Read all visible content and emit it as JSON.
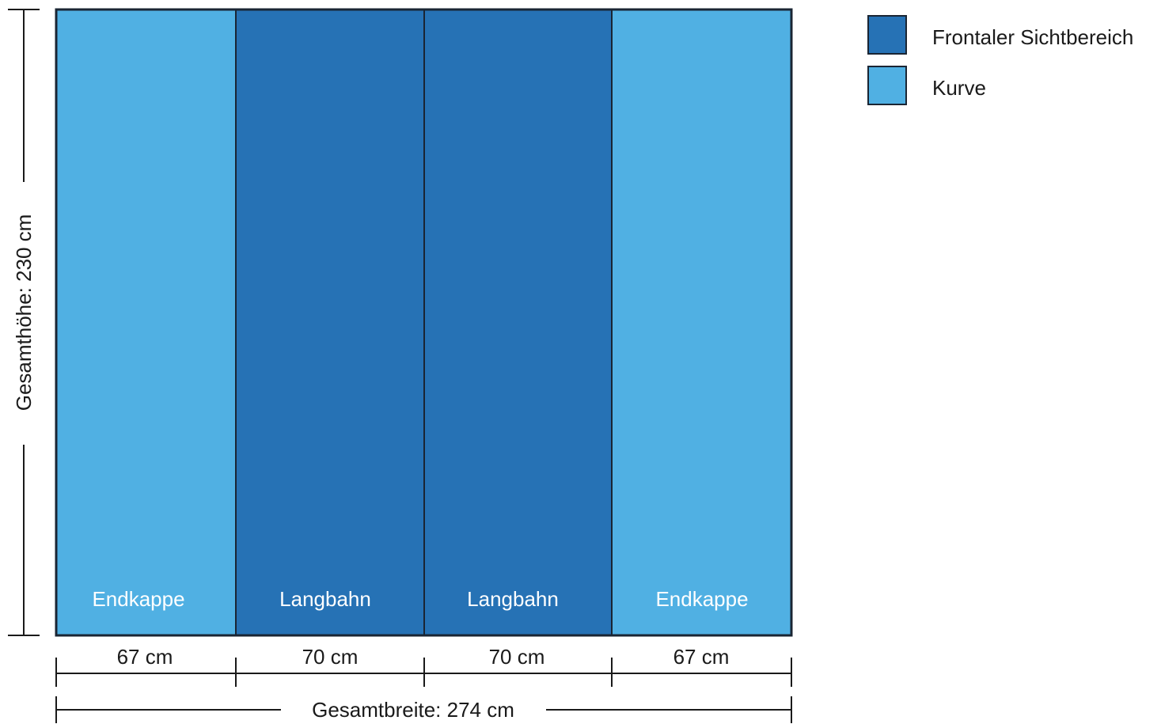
{
  "colors": {
    "frontal": "#2672b5",
    "curve": "#50b0e3",
    "outline": "#1a2533",
    "line": "#1a1a1a"
  },
  "panels": [
    {
      "label": "Endkappe",
      "width_label": "67 cm",
      "kind": "curve"
    },
    {
      "label": "Langbahn",
      "width_label": "70 cm",
      "kind": "frontal"
    },
    {
      "label": "Langbahn",
      "width_label": "70 cm",
      "kind": "frontal"
    },
    {
      "label": "Endkappe",
      "width_label": "67 cm",
      "kind": "curve"
    }
  ],
  "dimensions": {
    "total_width_label": "Gesamtbreite: 274 cm",
    "total_height_label": "Gesamthöhe: 230 cm"
  },
  "legend": [
    {
      "label": "Frontaler Sichtbereich",
      "kind": "frontal"
    },
    {
      "label": "Kurve",
      "kind": "curve"
    }
  ]
}
